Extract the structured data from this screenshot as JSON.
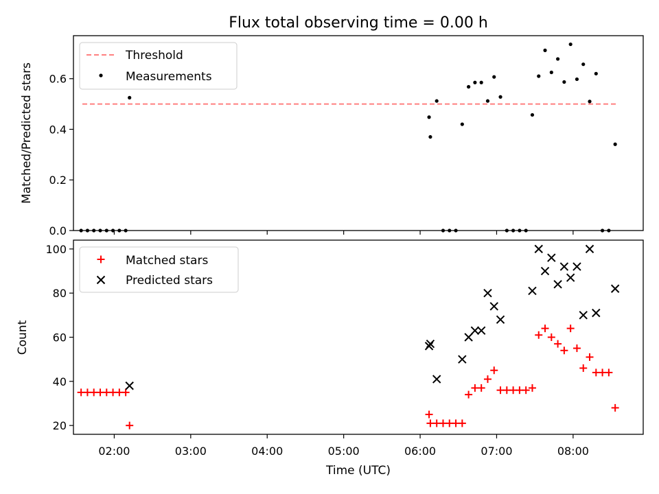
{
  "figure_title": "Flux total observing time = 0.00 h",
  "xlabel": "Time (UTC)",
  "x_tick_labels": [
    "02:00",
    "03:00",
    "04:00",
    "05:00",
    "06:00",
    "07:00",
    "08:00"
  ],
  "colors": {
    "threshold": "#ff7f7f",
    "measurements": "#000000",
    "matched": "#ff0000",
    "predicted": "#000000"
  },
  "chart_data": [
    {
      "type": "scatter",
      "ylabel": "Matched/Predicted stars",
      "xlim": [
        "01:28",
        "08:55"
      ],
      "ylim": [
        0,
        0.77
      ],
      "y_ticks": [
        "0.0",
        "0.2",
        "0.4",
        "0.6"
      ],
      "legend_position": "upper-left",
      "threshold": {
        "name": "Threshold",
        "value": 0.5,
        "x_range": [
          "01:35",
          "08:35"
        ]
      },
      "series": [
        {
          "name": "Measurements",
          "points": [
            [
              "01:34",
              0.0
            ],
            [
              "01:39",
              0.0
            ],
            [
              "01:44",
              0.0
            ],
            [
              "01:49",
              0.0
            ],
            [
              "01:54",
              0.0
            ],
            [
              "01:59",
              0.0
            ],
            [
              "02:04",
              0.0
            ],
            [
              "02:09",
              0.0
            ],
            [
              "02:12",
              0.525
            ],
            [
              "06:07",
              0.448
            ],
            [
              "06:08",
              0.37
            ],
            [
              "06:13",
              0.512
            ],
            [
              "06:18",
              0.0
            ],
            [
              "06:23",
              0.0
            ],
            [
              "06:28",
              0.0
            ],
            [
              "06:33",
              0.42
            ],
            [
              "06:38",
              0.568
            ],
            [
              "06:43",
              0.585
            ],
            [
              "06:48",
              0.585
            ],
            [
              "06:53",
              0.512
            ],
            [
              "06:58",
              0.607
            ],
            [
              "07:03",
              0.528
            ],
            [
              "07:08",
              0.0
            ],
            [
              "07:13",
              0.0
            ],
            [
              "07:18",
              0.0
            ],
            [
              "07:23",
              0.0
            ],
            [
              "07:28",
              0.457
            ],
            [
              "07:33",
              0.61
            ],
            [
              "07:38",
              0.712
            ],
            [
              "07:43",
              0.625
            ],
            [
              "07:48",
              0.678
            ],
            [
              "07:53",
              0.587
            ],
            [
              "07:58",
              0.736
            ],
            [
              "08:03",
              0.598
            ],
            [
              "08:08",
              0.657
            ],
            [
              "08:13",
              0.51
            ],
            [
              "08:18",
              0.62
            ],
            [
              "08:23",
              0.0
            ],
            [
              "08:28",
              0.0
            ],
            [
              "08:33",
              0.341
            ]
          ]
        }
      ]
    },
    {
      "type": "scatter",
      "ylabel": "Count",
      "xlim": [
        "01:28",
        "08:55"
      ],
      "ylim": [
        16,
        104
      ],
      "y_ticks": [
        "20",
        "40",
        "60",
        "80",
        "100"
      ],
      "legend_position": "upper-left",
      "series": [
        {
          "name": "Matched stars",
          "marker": "plus",
          "points": [
            [
              "01:34",
              35
            ],
            [
              "01:39",
              35
            ],
            [
              "01:44",
              35
            ],
            [
              "01:49",
              35
            ],
            [
              "01:54",
              35
            ],
            [
              "01:59",
              35
            ],
            [
              "02:04",
              35
            ],
            [
              "02:09",
              35
            ],
            [
              "02:12",
              20
            ],
            [
              "06:07",
              25
            ],
            [
              "06:08",
              21
            ],
            [
              "06:13",
              21
            ],
            [
              "06:18",
              21
            ],
            [
              "06:23",
              21
            ],
            [
              "06:28",
              21
            ],
            [
              "06:33",
              21
            ],
            [
              "06:38",
              34
            ],
            [
              "06:43",
              37
            ],
            [
              "06:48",
              37
            ],
            [
              "06:53",
              41
            ],
            [
              "06:58",
              45
            ],
            [
              "07:03",
              36
            ],
            [
              "07:08",
              36
            ],
            [
              "07:13",
              36
            ],
            [
              "07:18",
              36
            ],
            [
              "07:23",
              36
            ],
            [
              "07:28",
              37
            ],
            [
              "07:33",
              61
            ],
            [
              "07:38",
              64
            ],
            [
              "07:43",
              60
            ],
            [
              "07:48",
              57
            ],
            [
              "07:53",
              54
            ],
            [
              "07:58",
              64
            ],
            [
              "08:03",
              55
            ],
            [
              "08:08",
              46
            ],
            [
              "08:13",
              51
            ],
            [
              "08:18",
              44
            ],
            [
              "08:23",
              44
            ],
            [
              "08:28",
              44
            ],
            [
              "08:33",
              28
            ]
          ]
        },
        {
          "name": "Predicted stars",
          "marker": "x",
          "points": [
            [
              "02:12",
              38
            ],
            [
              "06:07",
              56
            ],
            [
              "06:08",
              57
            ],
            [
              "06:13",
              41
            ],
            [
              "06:33",
              50
            ],
            [
              "06:38",
              60
            ],
            [
              "06:43",
              63
            ],
            [
              "06:48",
              63
            ],
            [
              "06:53",
              80
            ],
            [
              "06:58",
              74
            ],
            [
              "07:03",
              68
            ],
            [
              "07:28",
              81
            ],
            [
              "07:33",
              100
            ],
            [
              "07:38",
              90
            ],
            [
              "07:43",
              96
            ],
            [
              "07:48",
              84
            ],
            [
              "07:53",
              92
            ],
            [
              "07:58",
              87
            ],
            [
              "08:03",
              92
            ],
            [
              "08:08",
              70
            ],
            [
              "08:13",
              100
            ],
            [
              "08:18",
              71
            ],
            [
              "08:33",
              82
            ]
          ]
        }
      ]
    }
  ]
}
